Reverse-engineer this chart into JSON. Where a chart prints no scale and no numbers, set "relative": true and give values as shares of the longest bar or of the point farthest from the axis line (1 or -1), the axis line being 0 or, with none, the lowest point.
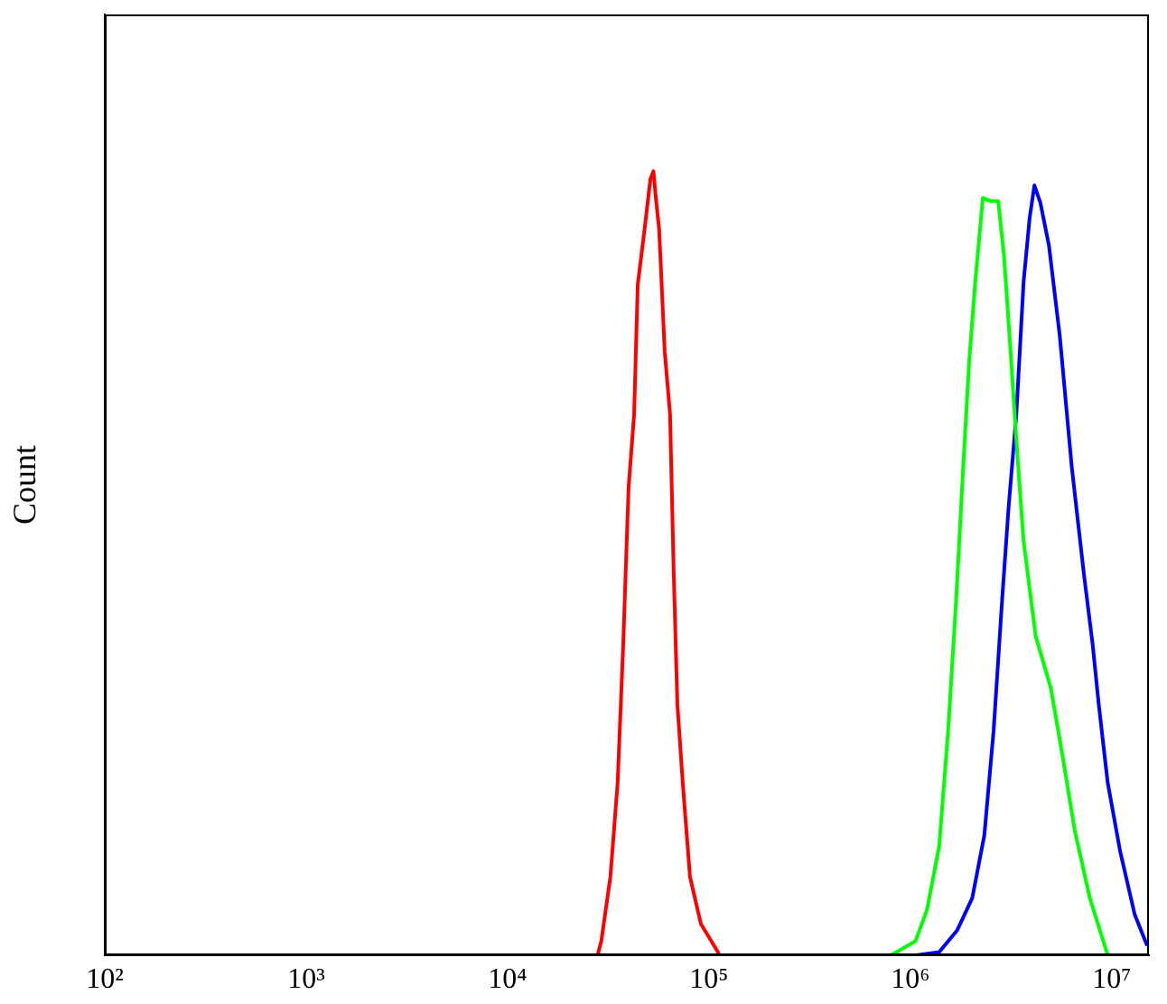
{
  "chart_data": {
    "type": "line",
    "relative": true,
    "ylabel": "Count",
    "log": "x",
    "grid": false,
    "legend": false,
    "marker": "none",
    "xlim": [
      100,
      15300000
    ],
    "xticks": [
      {
        "value": 100,
        "label": "10²"
      },
      {
        "value": 1000,
        "label": "10³"
      },
      {
        "value": 10000,
        "label": "10⁴"
      },
      {
        "value": 100000,
        "label": "10⁵"
      },
      {
        "value": 1000000,
        "label": "10⁶"
      },
      {
        "value": 10000000,
        "label": "10⁷"
      }
    ],
    "series": [
      {
        "color": "#ff0000",
        "x": [
          28000,
          29200,
          32400,
          35200,
          37500,
          39900,
          42500,
          44300,
          48100,
          51200,
          53000,
          54300,
          56600,
          60300,
          64100,
          66800,
          69700,
          74100,
          80500,
          91200,
          112000
        ],
        "values": [
          0,
          0.018,
          0.1,
          0.22,
          0.395,
          0.597,
          0.69,
          0.855,
          0.93,
          0.99,
          1,
          0.97,
          0.925,
          0.77,
          0.69,
          0.49,
          0.32,
          0.22,
          0.1,
          0.04,
          0.002
        ]
      },
      {
        "color": "#00ff00",
        "x": [
          802000,
          1060000,
          1210000,
          1390000,
          1540000,
          1690000,
          1830000,
          1960000,
          2100000,
          2290000,
          2490000,
          2730000,
          2920000,
          3130000,
          3360000,
          3650000,
          4190000,
          4980000,
          5700000,
          6550000,
          7780000,
          9550000
        ],
        "values": [
          0,
          0.018,
          0.058,
          0.139,
          0.286,
          0.456,
          0.623,
          0.758,
          0.859,
          0.966,
          0.962,
          0.962,
          0.891,
          0.778,
          0.657,
          0.528,
          0.407,
          0.341,
          0.254,
          0.159,
          0.073,
          0
        ]
      },
      {
        "color": "#0000ff",
        "x": [
          1060000,
          1390000,
          1710000,
          2030000,
          2330000,
          2590000,
          2860000,
          3070000,
          3360000,
          3650000,
          3910000,
          4130000,
          4420000,
          4880000,
          5520000,
          6330000,
          7260000,
          8050000,
          8610000,
          9550000,
          11000000,
          13000000,
          15000000
        ],
        "values": [
          0,
          0.004,
          0.032,
          0.073,
          0.153,
          0.286,
          0.456,
          0.569,
          0.69,
          0.859,
          0.94,
          0.982,
          0.96,
          0.905,
          0.79,
          0.623,
          0.488,
          0.395,
          0.321,
          0.22,
          0.133,
          0.052,
          0.012
        ]
      }
    ]
  }
}
